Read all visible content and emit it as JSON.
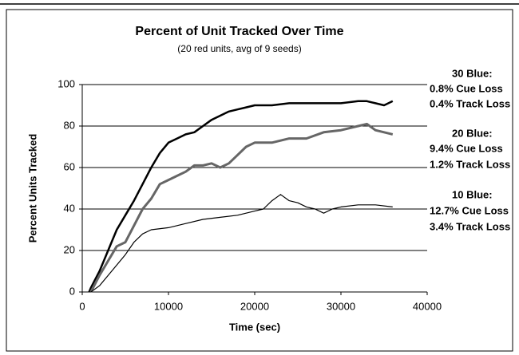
{
  "chart_data": {
    "type": "line",
    "title": "Percent of Unit Tracked Over Time",
    "subtitle": "(20 red units, avg of 9 seeds)",
    "x_label": "Time (sec)",
    "y_label": "Percent Units Tracked",
    "xlim": [
      0,
      40000
    ],
    "xticks": [
      0,
      10000,
      20000,
      30000,
      40000
    ],
    "ylim": [
      0,
      100
    ],
    "yticks": [
      0,
      20,
      40,
      60,
      80,
      100
    ],
    "grid": true,
    "series": [
      {
        "color": "#000000",
        "width": 2.5,
        "x": [
          800,
          1000,
          2000,
          3000,
          4000,
          5000,
          6000,
          7000,
          8000,
          9000,
          10000,
          11000,
          12000,
          13000,
          14000,
          15000,
          16000,
          17000,
          18000,
          19000,
          20000,
          22000,
          24000,
          26000,
          28000,
          30000,
          32000,
          33000,
          34000,
          35000,
          36000
        ],
        "values": [
          0,
          2,
          10,
          20,
          30,
          37,
          44,
          52,
          60,
          67,
          72,
          74,
          76,
          77,
          80,
          83,
          85,
          87,
          88,
          89,
          90,
          90,
          91,
          91,
          91,
          91,
          92,
          92,
          91,
          90,
          92
        ]
      },
      {
        "color": "#666666",
        "width": 3,
        "x": [
          1000,
          2000,
          3000,
          4000,
          5000,
          6000,
          7000,
          8000,
          9000,
          10000,
          11000,
          12000,
          13000,
          14000,
          15000,
          16000,
          17000,
          18000,
          19000,
          20000,
          22000,
          24000,
          26000,
          28000,
          30000,
          32000,
          33000,
          34000,
          35000,
          36000
        ],
        "values": [
          0,
          8,
          15,
          22,
          24,
          32,
          40,
          45,
          52,
          54,
          56,
          58,
          61,
          61,
          62,
          60,
          62,
          66,
          70,
          72,
          72,
          74,
          74,
          77,
          78,
          80,
          81,
          78,
          77,
          76
        ]
      },
      {
        "color": "#000000",
        "width": 1.2,
        "x": [
          1000,
          2000,
          3000,
          4000,
          5000,
          6000,
          7000,
          8000,
          10000,
          12000,
          14000,
          16000,
          18000,
          20000,
          21000,
          22000,
          23000,
          24000,
          25000,
          26000,
          27000,
          28000,
          29000,
          30000,
          32000,
          34000,
          36000
        ],
        "values": [
          0,
          3,
          8,
          13,
          18,
          24,
          28,
          30,
          31,
          33,
          35,
          36,
          37,
          39,
          40,
          44,
          47,
          44,
          43,
          41,
          40,
          38,
          40,
          41,
          42,
          42,
          41
        ]
      }
    ],
    "annotations": [
      "30 Blue:",
      "0.8% Cue Loss",
      "0.4% Track Loss",
      "20 Blue:",
      "9.4% Cue Loss",
      "1.2% Track Loss",
      "10 Blue:",
      "12.7% Cue Loss",
      "3.4% Track Loss"
    ]
  }
}
